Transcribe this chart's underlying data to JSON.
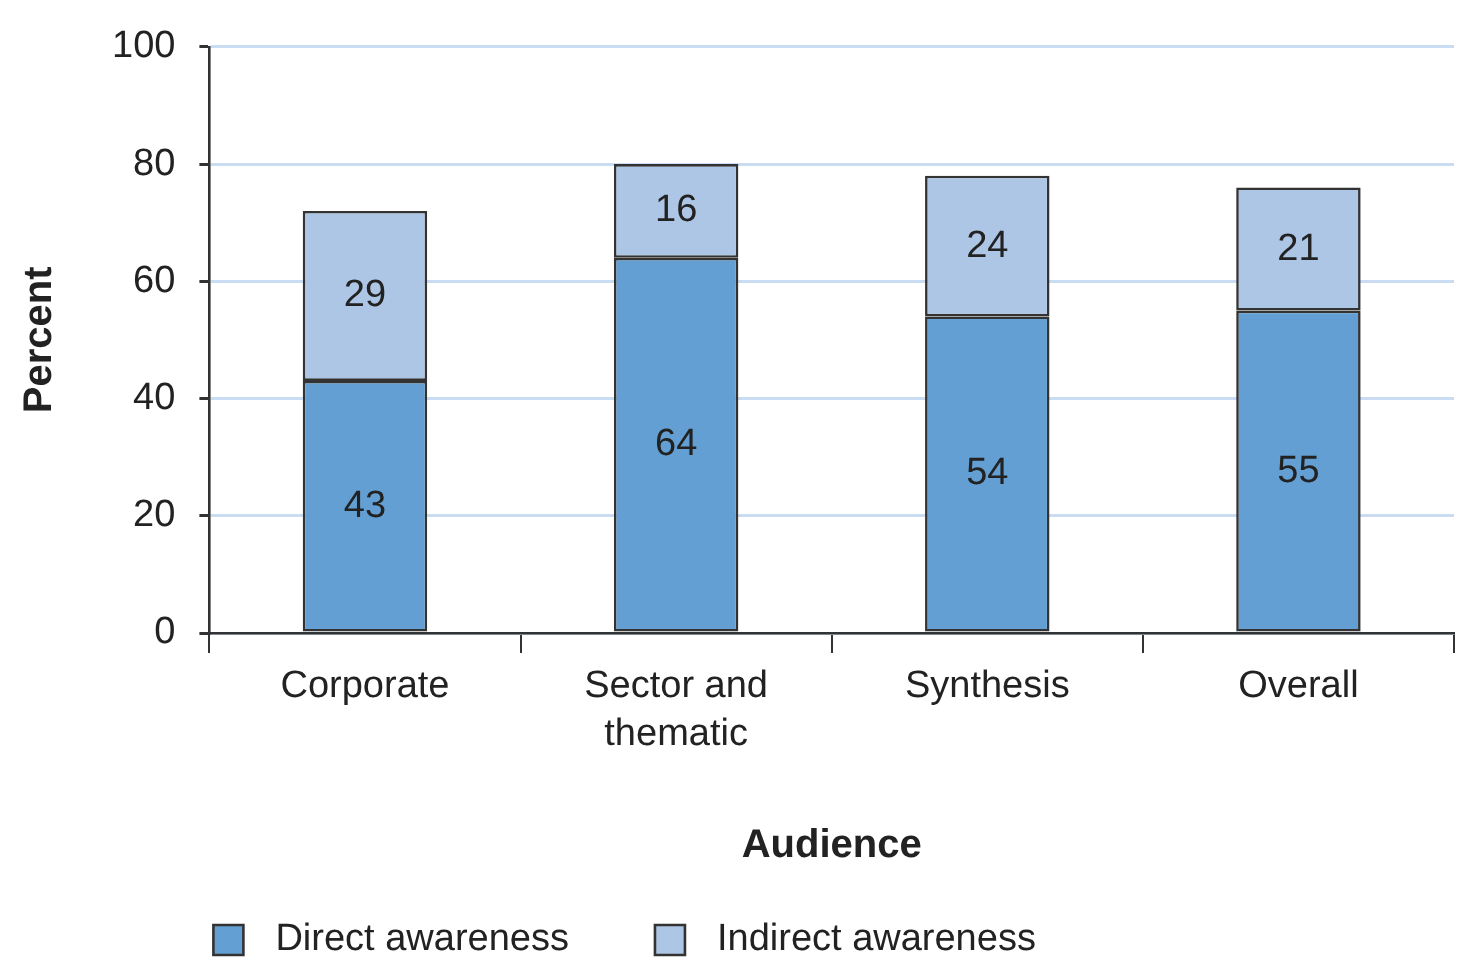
{
  "chart_data": {
    "type": "bar",
    "xlabel": "Audience",
    "ylabel": "Percent",
    "categories": [
      "Corporate",
      "Sector and thematic",
      "Synthesis",
      "Overall"
    ],
    "series": [
      {
        "name": "Direct awareness",
        "color": "#639fd3",
        "values": [
          43,
          64,
          54,
          55
        ]
      },
      {
        "name": "Indirect awareness",
        "color": "#adc6e5",
        "values": [
          29,
          16,
          24,
          21
        ]
      }
    ],
    "stacked": true,
    "ylim": [
      0,
      100
    ],
    "yticks": [
      0,
      20,
      40,
      60,
      80,
      100
    ],
    "grid": "y",
    "legend": "bottom left",
    "data_labels": true
  }
}
